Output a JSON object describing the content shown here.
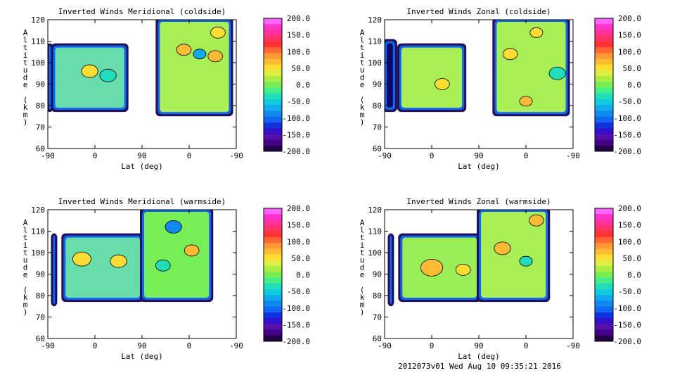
{
  "footer": "2012073v01 Wed Aug 10 09:35:21 2016",
  "colorbar": {
    "labels": [
      "200.0",
      "150.0",
      "100.0",
      "50.0",
      "0.0",
      "-50.0",
      "-100.0",
      "-150.0",
      "-200.0"
    ],
    "colors": [
      "#ff66ff",
      "#ff33cc",
      "#ff3399",
      "#ff3366",
      "#ff3333",
      "#ff6633",
      "#ff9933",
      "#ffbb33",
      "#ffdd33",
      "#ddee44",
      "#aaee44",
      "#77ee55",
      "#44ee88",
      "#22ddbb",
      "#11ccdd",
      "#11aaee",
      "#1188ee",
      "#1166ee",
      "#1133dd",
      "#3311cc",
      "#5511aa",
      "#440088",
      "#220044"
    ]
  },
  "chart_data": [
    {
      "type": "heatmap",
      "title": "Inverted Winds Meridional (coldside)",
      "xlabel": "Lat (deg)",
      "ylabel": "Altitude (km)",
      "xticks": [
        "-90",
        "0",
        "90",
        "0",
        "-90"
      ],
      "yticks": [
        "60",
        "70",
        "80",
        "90",
        "100",
        "110",
        "120"
      ],
      "ylim": [
        60,
        120
      ],
      "zlim": [
        -200,
        200
      ],
      "blocks": [
        {
          "x": [
            -88,
            -84
          ],
          "y": [
            78,
            108
          ],
          "fill": "#0a0a66"
        },
        {
          "x": [
            -80,
            60
          ],
          "y": [
            78,
            108
          ],
          "fill": "#66ddaa"
        },
        {
          "x": [
            120,
            260
          ],
          "y": [
            76,
            120
          ],
          "fill": "#aaee55"
        }
      ],
      "spots": [
        {
          "x": -10,
          "y": 96,
          "r": 9,
          "fill": "#ffdd33"
        },
        {
          "x": 25,
          "y": 94,
          "r": 9,
          "fill": "#22ddbb"
        },
        {
          "x": 170,
          "y": 106,
          "r": 8,
          "fill": "#ffbb33"
        },
        {
          "x": 200,
          "y": 104,
          "r": 7,
          "fill": "#11aaee"
        },
        {
          "x": 230,
          "y": 103,
          "r": 8,
          "fill": "#ffbb33"
        },
        {
          "x": 235,
          "y": 114,
          "r": 8,
          "fill": "#ffdd33"
        }
      ]
    },
    {
      "type": "heatmap",
      "title": "Inverted Winds Zonal (coldside)",
      "xlabel": "Lat (deg)",
      "ylabel": "Altitude (km)",
      "xticks": [
        "-90",
        "0",
        "90",
        "0",
        "-90"
      ],
      "yticks": [
        "60",
        "70",
        "80",
        "90",
        "100",
        "110",
        "120"
      ],
      "ylim": [
        60,
        120
      ],
      "zlim": [
        -200,
        200
      ],
      "blocks": [
        {
          "x": [
            -90,
            -70
          ],
          "y": [
            78,
            110
          ],
          "fill": "#0a0a66"
        },
        {
          "x": [
            -62,
            62
          ],
          "y": [
            78,
            108
          ],
          "fill": "#aaee55"
        },
        {
          "x": [
            120,
            260
          ],
          "y": [
            76,
            120
          ],
          "fill": "#aaee55"
        }
      ],
      "spots": [
        {
          "x": 20,
          "y": 90,
          "r": 8,
          "fill": "#ffdd33"
        },
        {
          "x": 150,
          "y": 104,
          "r": 8,
          "fill": "#ffdd33"
        },
        {
          "x": 240,
          "y": 95,
          "r": 9,
          "fill": "#22ddbb"
        },
        {
          "x": 180,
          "y": 82,
          "r": 7,
          "fill": "#ffbb33"
        },
        {
          "x": 200,
          "y": 114,
          "r": 7,
          "fill": "#ffdd33"
        }
      ]
    },
    {
      "type": "heatmap",
      "title": "Inverted Winds Meridional (warmside)",
      "xlabel": "Lat (deg)",
      "ylabel": "Altitude (km)",
      "xticks": [
        "-90",
        "0",
        "90",
        "0",
        "-90"
      ],
      "yticks": [
        "60",
        "70",
        "80",
        "90",
        "100",
        "110",
        "120"
      ],
      "ylim": [
        60,
        120
      ],
      "zlim": [
        -200,
        200
      ],
      "blocks": [
        {
          "x": [
            -80,
            -76
          ],
          "y": [
            76,
            108
          ],
          "fill": "#0a0a66"
        },
        {
          "x": [
            -60,
            90
          ],
          "y": [
            78,
            108
          ],
          "fill": "#66ddaa"
        },
        {
          "x": [
            90,
            222
          ],
          "y": [
            78,
            120
          ],
          "fill": "#77ee55"
        }
      ],
      "spots": [
        {
          "x": -25,
          "y": 97,
          "r": 10,
          "fill": "#ffdd33"
        },
        {
          "x": 45,
          "y": 96,
          "r": 9,
          "fill": "#ffdd33"
        },
        {
          "x": 185,
          "y": 101,
          "r": 8,
          "fill": "#ffbb33"
        },
        {
          "x": 150,
          "y": 112,
          "r": 9,
          "fill": "#1188ee"
        },
        {
          "x": 130,
          "y": 94,
          "r": 8,
          "fill": "#22ddbb"
        }
      ]
    },
    {
      "type": "heatmap",
      "title": "Inverted Winds Zonal (warmside)",
      "xlabel": "Lat (deg)",
      "ylabel": "Altitude (km)",
      "xticks": [
        "-90",
        "0",
        "90",
        "0",
        "-90"
      ],
      "yticks": [
        "60",
        "70",
        "80",
        "90",
        "100",
        "110",
        "120"
      ],
      "ylim": [
        60,
        120
      ],
      "zlim": [
        -200,
        200
      ],
      "blocks": [
        {
          "x": [
            -80,
            -76
          ],
          "y": [
            76,
            108
          ],
          "fill": "#0a0a66"
        },
        {
          "x": [
            -60,
            90
          ],
          "y": [
            78,
            108
          ],
          "fill": "#99ee55"
        },
        {
          "x": [
            90,
            222
          ],
          "y": [
            78,
            120
          ],
          "fill": "#aaee55"
        }
      ],
      "spots": [
        {
          "x": 0,
          "y": 93,
          "r": 12,
          "fill": "#ffbb33"
        },
        {
          "x": 60,
          "y": 92,
          "r": 8,
          "fill": "#ffdd33"
        },
        {
          "x": 135,
          "y": 102,
          "r": 9,
          "fill": "#ffbb33"
        },
        {
          "x": 200,
          "y": 115,
          "r": 8,
          "fill": "#ffbb33"
        },
        {
          "x": 180,
          "y": 96,
          "r": 7,
          "fill": "#22ddbb"
        }
      ]
    }
  ]
}
